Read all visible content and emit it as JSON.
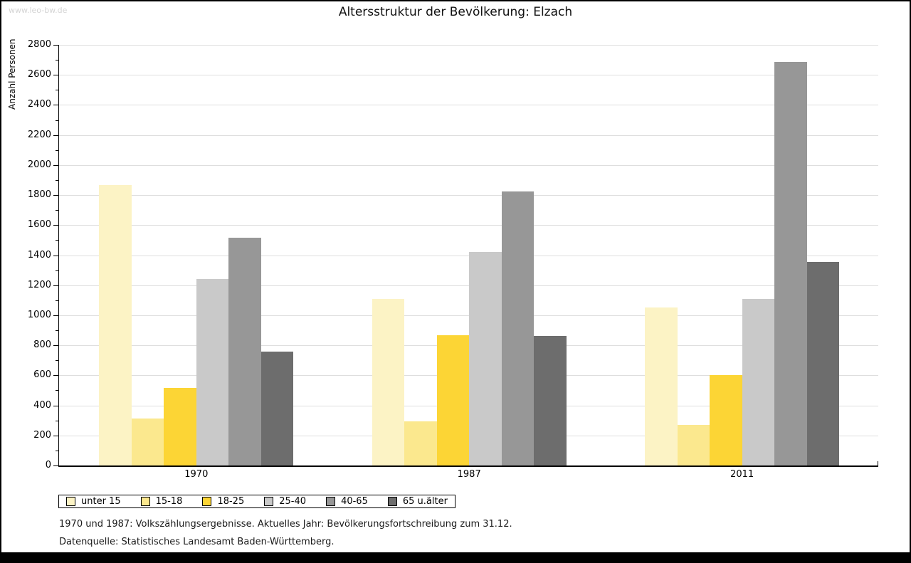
{
  "page": {
    "watermark": "www.leo-bw.de"
  },
  "chart_data": {
    "type": "bar",
    "title": "Altersstruktur der Bevölkerung: Elzach",
    "xlabel": "",
    "ylabel": "Anzahl Personen",
    "ylim": [
      0,
      2800
    ],
    "yticks": [
      0,
      200,
      400,
      600,
      800,
      1000,
      1200,
      1400,
      1600,
      1800,
      2000,
      2200,
      2400,
      2600,
      2800
    ],
    "minor_tick_step": 100,
    "grid": "horizontal-major",
    "legend_position": "bottom-left",
    "categories": [
      "1970",
      "1987",
      "2011"
    ],
    "series": [
      {
        "name": "unter 15",
        "color": "#FCF3C5",
        "values": [
          1865,
          1110,
          1050
        ]
      },
      {
        "name": "15-18",
        "color": "#FBE88E",
        "values": [
          315,
          295,
          270
        ]
      },
      {
        "name": "18-25",
        "color": "#FCD535",
        "values": [
          515,
          865,
          600
        ]
      },
      {
        "name": "25-40",
        "color": "#C9C9C9",
        "values": [
          1240,
          1420,
          1110
        ]
      },
      {
        "name": "40-65",
        "color": "#979797",
        "values": [
          1515,
          1825,
          2685
        ]
      },
      {
        "name": "65 u.älter",
        "color": "#6D6D6D",
        "values": [
          760,
          860,
          1355
        ]
      }
    ],
    "footnotes": [
      "1970 und 1987: Volkszählungsergebnisse. Aktuelles Jahr: Bevölkerungsfortschreibung zum 31.12.",
      "Datenquelle: Statistisches Landesamt Baden-Württemberg."
    ]
  }
}
